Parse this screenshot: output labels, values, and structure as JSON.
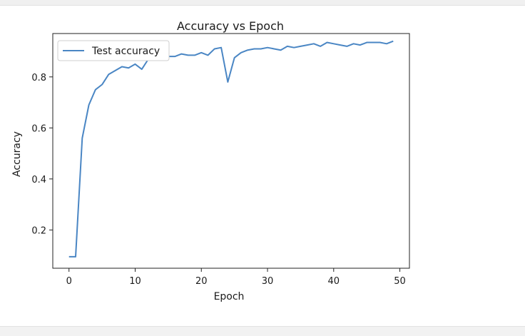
{
  "chart_data": {
    "type": "line",
    "title": "Accuracy vs Epoch",
    "xlabel": "Epoch",
    "ylabel": "Accuracy",
    "xlim": [
      -2.45,
      51.45
    ],
    "ylim": [
      0.05,
      0.97
    ],
    "xticks": [
      0,
      10,
      20,
      30,
      40,
      50
    ],
    "yticks": [
      0.2,
      0.4,
      0.6,
      0.8
    ],
    "grid": false,
    "legend": "top-left",
    "series": [
      {
        "name": "Test accuracy",
        "color": "#4a86c4",
        "x": [
          0,
          1,
          2,
          3,
          4,
          5,
          6,
          7,
          8,
          9,
          10,
          11,
          12,
          13,
          14,
          15,
          16,
          17,
          18,
          19,
          20,
          21,
          22,
          23,
          24,
          25,
          26,
          27,
          28,
          29,
          30,
          31,
          32,
          33,
          34,
          35,
          36,
          37,
          38,
          39,
          40,
          41,
          42,
          43,
          44,
          45,
          46,
          47,
          48,
          49
        ],
        "values": [
          0.095,
          0.095,
          0.56,
          0.69,
          0.75,
          0.77,
          0.81,
          0.825,
          0.84,
          0.835,
          0.85,
          0.83,
          0.87,
          0.88,
          0.875,
          0.88,
          0.88,
          0.89,
          0.885,
          0.885,
          0.895,
          0.885,
          0.91,
          0.915,
          0.78,
          0.875,
          0.895,
          0.905,
          0.91,
          0.91,
          0.915,
          0.91,
          0.905,
          0.92,
          0.915,
          0.92,
          0.925,
          0.93,
          0.92,
          0.935,
          0.93,
          0.925,
          0.92,
          0.93,
          0.925,
          0.935,
          0.935,
          0.935,
          0.93,
          0.94
        ]
      }
    ]
  }
}
